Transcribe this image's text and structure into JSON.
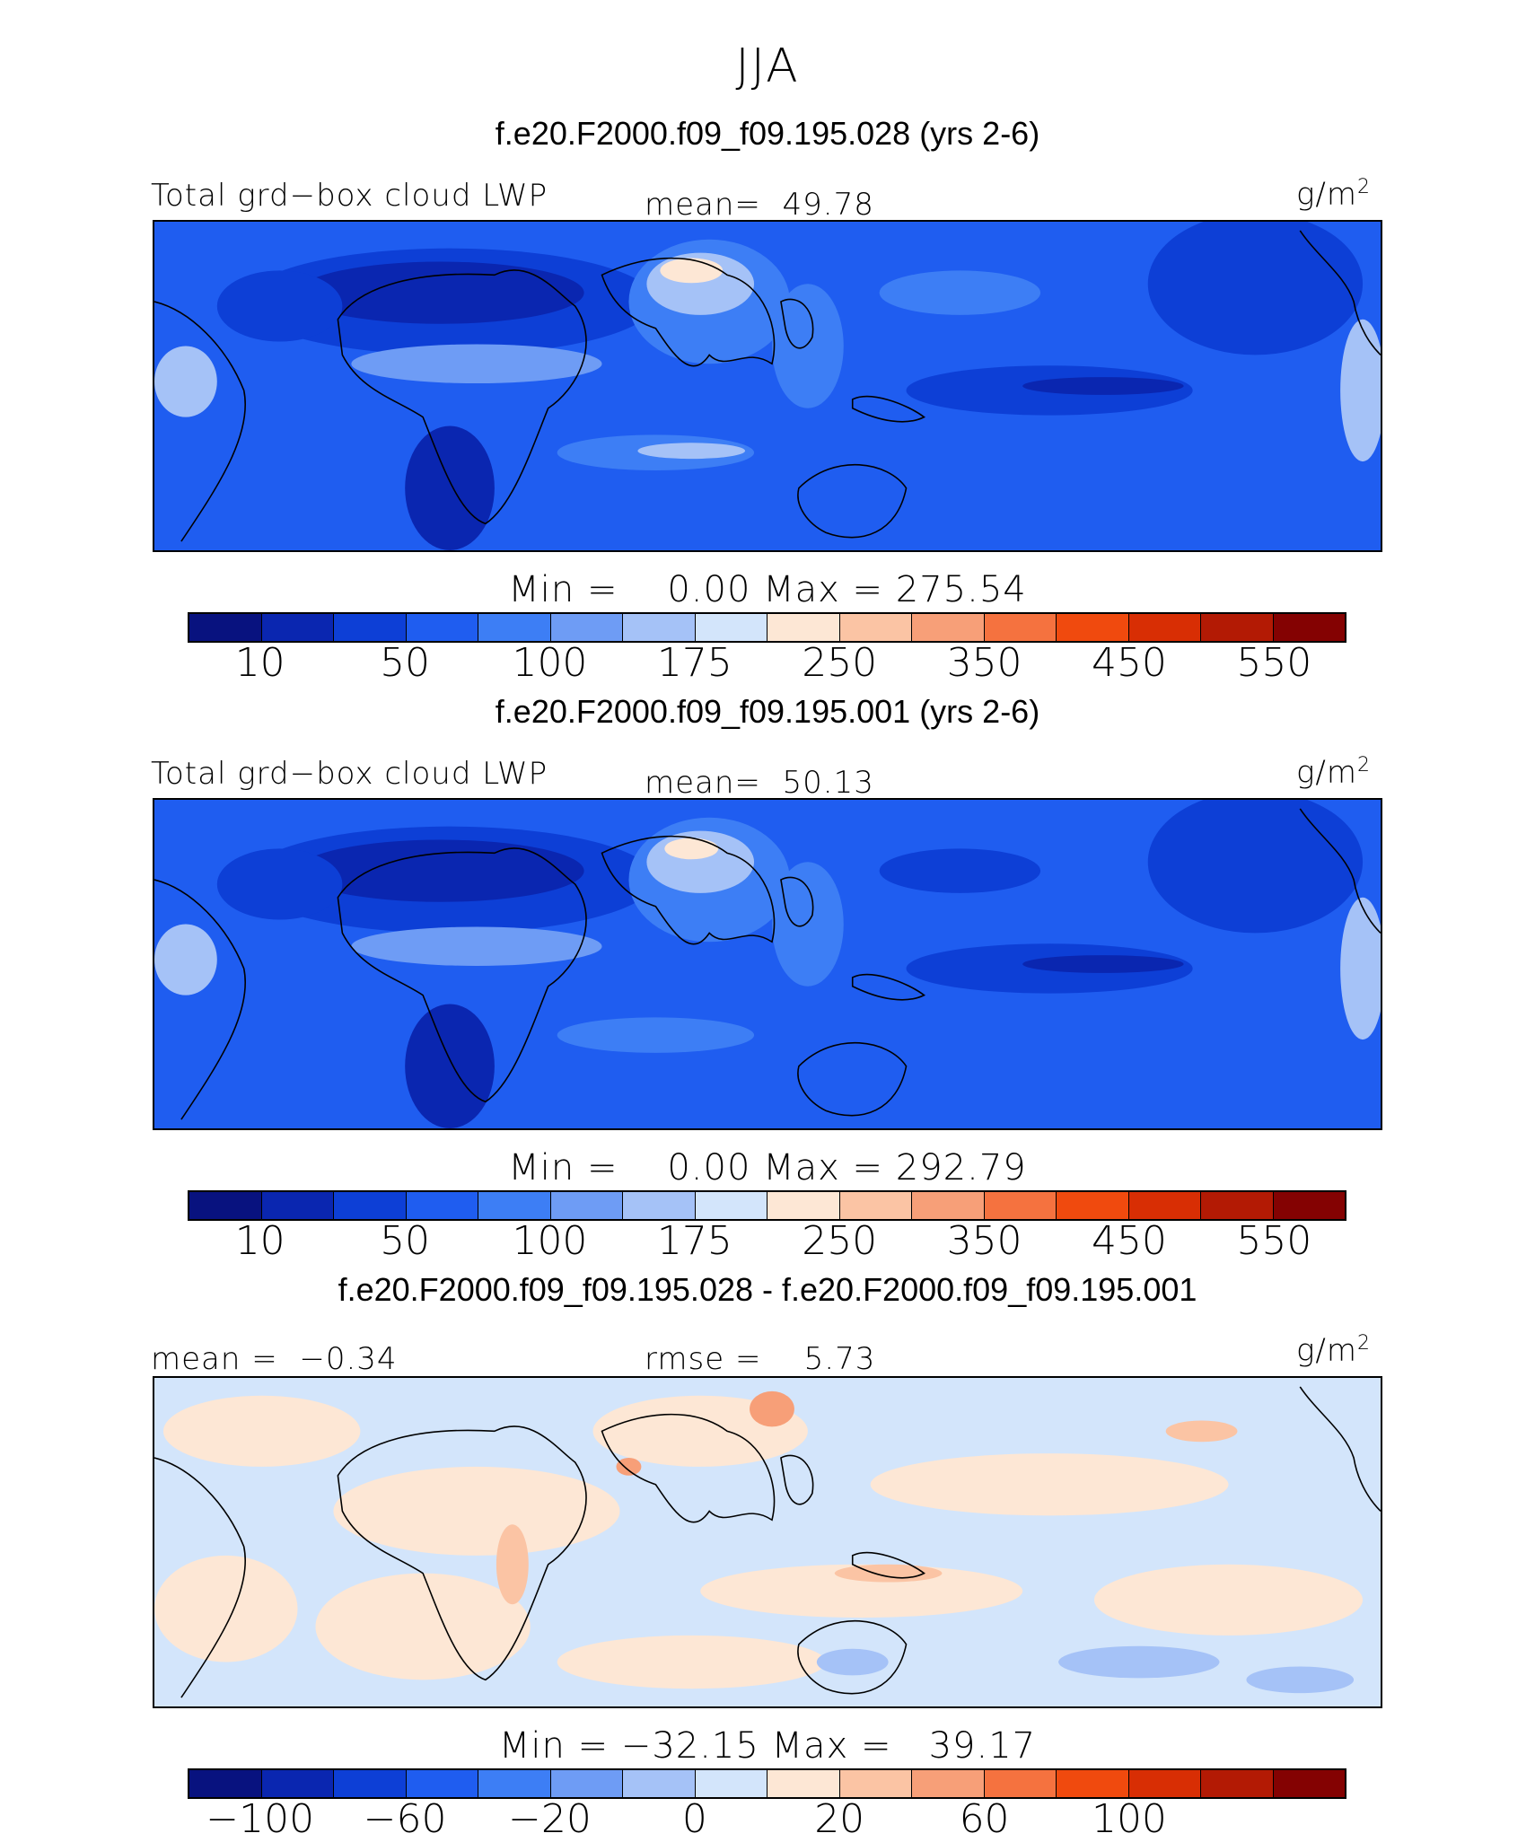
{
  "season": "JJA",
  "colors": {
    "abs_scale": [
      "#08127f",
      "#0a26b0",
      "#0d3fd6",
      "#1f5df0",
      "#3d7ef5",
      "#6e9cf5",
      "#a5c2f7",
      "#d3e5fb",
      "#fde7d5",
      "#fbc4a4",
      "#f79f78",
      "#f5723f",
      "#f04a0e",
      "#d82e04",
      "#b31a04",
      "#840202"
    ],
    "diff_scale": [
      "#08127f",
      "#0a26b0",
      "#0d3fd6",
      "#1f5df0",
      "#3d7ef5",
      "#6e9cf5",
      "#a5c2f7",
      "#d3e5fb",
      "#fde7d5",
      "#fbc4a4",
      "#f79f78",
      "#f5723f",
      "#f04a0e",
      "#d82e04",
      "#b31a04",
      "#840202"
    ]
  },
  "panels": [
    {
      "title": "f.e20.F2000.f09_f09.195.028 (yrs 2-6)",
      "left_label": "Total grd−box cloud LWP",
      "mid_label": "mean=  49.78",
      "units": "g/m",
      "units_sup": "2",
      "minmax": "Min =    0.00 Max = 275.54",
      "ticks": [
        "10",
        "50",
        "100",
        "175",
        "250",
        "350",
        "450",
        "550"
      ],
      "kind": "abs"
    },
    {
      "title": "f.e20.F2000.f09_f09.195.001 (yrs 2-6)",
      "left_label": "Total grd−box cloud LWP",
      "mid_label": "mean=  50.13",
      "units": "g/m",
      "units_sup": "2",
      "minmax": "Min =    0.00 Max = 292.79",
      "ticks": [
        "10",
        "50",
        "100",
        "175",
        "250",
        "350",
        "450",
        "550"
      ],
      "kind": "abs"
    },
    {
      "title": "f.e20.F2000.f09_f09.195.028 - f.e20.F2000.f09_f09.195.001",
      "left_label": "mean =  −0.34",
      "mid_label": "rmse =    5.73",
      "units": "g/m",
      "units_sup": "2",
      "minmax": "Min = −32.15 Max =   39.17",
      "ticks": [
        "−100",
        "−60",
        "−20",
        "0",
        "20",
        "60",
        "100"
      ],
      "kind": "diff"
    }
  ]
}
